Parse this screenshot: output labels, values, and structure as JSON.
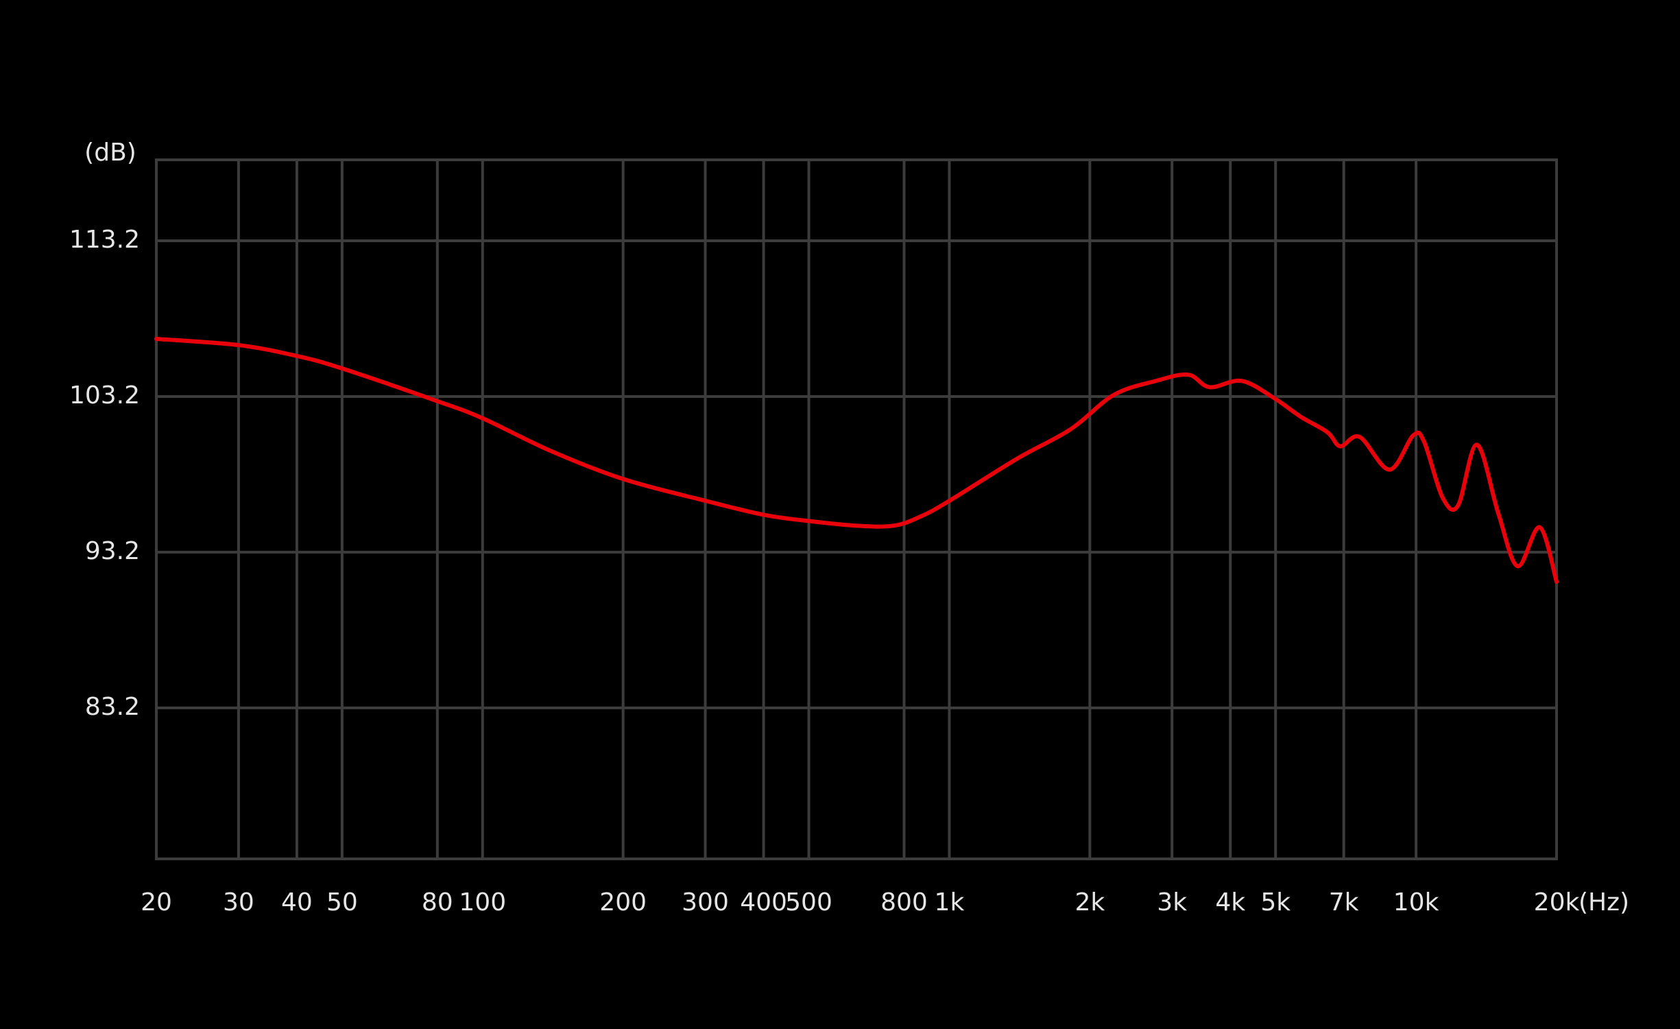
{
  "chart_data": {
    "type": "line",
    "y_label": "(dB)",
    "x_label": "(Hz)",
    "x": [
      20,
      30,
      40,
      50,
      80,
      100,
      140,
      200,
      300,
      400,
      500,
      632,
      760,
      869,
      1000,
      1396,
      1820,
      2250,
      2770,
      3250,
      3610,
      4230,
      4960,
      5660,
      6460,
      6880,
      7570,
      8770,
      9860,
      10400,
      11400,
      12300,
      13500,
      15000,
      16500,
      18400,
      20000
    ],
    "values": [
      106.9,
      106.5,
      105.8,
      105.0,
      102.9,
      101.8,
      99.7,
      97.9,
      96.5,
      95.6,
      95.2,
      94.9,
      94.9,
      95.5,
      96.5,
      99.2,
      101.1,
      103.3,
      104.2,
      104.6,
      103.8,
      104.2,
      103.1,
      101.9,
      100.9,
      100.0,
      100.6,
      98.5,
      100.7,
      100.3,
      96.7,
      96.2,
      100.1,
      95.7,
      92.3,
      94.8,
      91.3
    ],
    "color": "#e8000b",
    "xscale": "log",
    "xlim": [
      20,
      20000
    ],
    "xticks": [
      20,
      30,
      40,
      50,
      80,
      100,
      200,
      300,
      400,
      500,
      800,
      {
        "value": 1000,
        "label": "1k"
      },
      {
        "value": 2000,
        "label": "2k"
      },
      {
        "value": 3000,
        "label": "3k"
      },
      {
        "value": 4000,
        "label": "4k"
      },
      {
        "value": 5000,
        "label": "5k"
      },
      {
        "value": 7000,
        "label": "7k"
      },
      {
        "value": 10000,
        "label": "10k"
      },
      {
        "value": 20000,
        "label": "20k"
      }
    ],
    "ylim": [
      73.5,
      118.4
    ],
    "yticks": [
      83.2,
      93.2,
      103.2,
      113.2
    ],
    "grid": true
  }
}
